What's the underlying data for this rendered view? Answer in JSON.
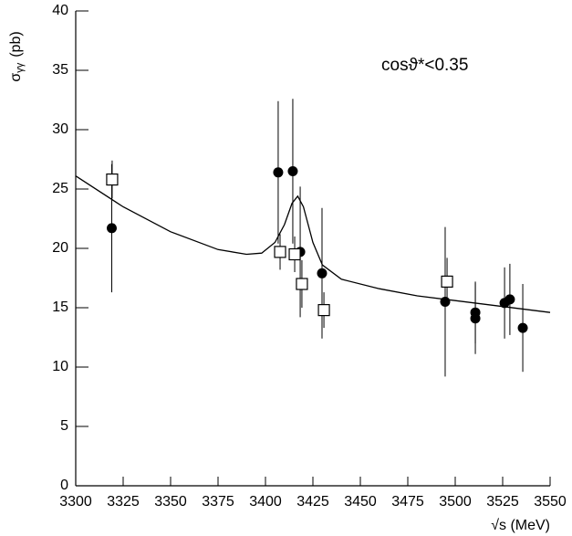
{
  "chart_data": {
    "type": "scatter",
    "x_label": "√s (MeV)",
    "y_label": {
      "symbol": "σ",
      "subscript": "γγ",
      "unit": "(pb)"
    },
    "annotation": "cosϑ*<0.35",
    "xlim": [
      3300,
      3550
    ],
    "xticks": [
      3300,
      3325,
      3350,
      3375,
      3400,
      3425,
      3450,
      3475,
      3500,
      3525,
      3550
    ],
    "ylim": [
      0,
      40
    ],
    "yticks": [
      0,
      5,
      10,
      15,
      20,
      25,
      30,
      35,
      40
    ],
    "series": [
      {
        "marker": "circle",
        "color": "#000000",
        "x": [
          3319,
          3406.7,
          3414.4,
          3418.3,
          3429.8,
          3494.7,
          3510.6,
          3510.6,
          3526,
          3528.8,
          3535.6
        ],
        "values": [
          21.7,
          26.4,
          26.5,
          19.7,
          17.9,
          15.5,
          14.6,
          14.1,
          15.4,
          15.7,
          13.3
        ],
        "errors": [
          5.4,
          6,
          6.1,
          5.5,
          5.5,
          6.3,
          2.6,
          3,
          3,
          3,
          3.7
        ]
      },
      {
        "marker": "square",
        "color": "#000000",
        "x": [
          3319.2,
          3407.7,
          3415.4,
          3419.2,
          3430.8,
          3495.7
        ],
        "values": [
          25.8,
          19.7,
          19.5,
          17.0,
          14.8,
          17.2
        ],
        "errors": [
          1.6,
          1.5,
          1.5,
          2,
          1.5,
          2
        ]
      },
      {
        "marker": "line",
        "color": "#000000",
        "x": [
          3300,
          3325,
          3350,
          3375,
          3390,
          3398,
          3405,
          3410,
          3414,
          3417,
          3420,
          3425,
          3430,
          3440,
          3460,
          3480,
          3500,
          3525,
          3550
        ],
        "values": [
          26.1,
          23.5,
          21.4,
          19.9,
          19.5,
          19.6,
          20.5,
          22,
          23.8,
          24.4,
          23.5,
          20.5,
          18.6,
          17.4,
          16.6,
          16.0,
          15.6,
          15.1,
          14.6
        ]
      }
    ]
  }
}
